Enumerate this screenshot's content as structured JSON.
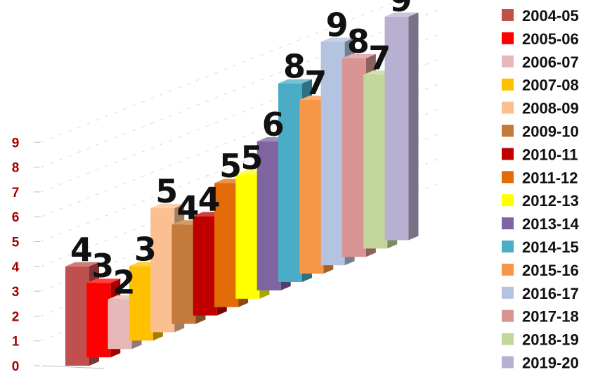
{
  "chart_data": {
    "type": "bar",
    "style": "3d-column",
    "categories": [
      "2004-05",
      "2005-06",
      "2006-07",
      "2007-08",
      "2008-09",
      "2009-10",
      "2010-11",
      "2011-12",
      "2012-13",
      "2013-14",
      "2014-15",
      "2015-16",
      "2016-17",
      "2017-18",
      "2018-19",
      "2019-20"
    ],
    "values": [
      4,
      3,
      2,
      3,
      5,
      4,
      4,
      5,
      5,
      6,
      8,
      7,
      9,
      8,
      7,
      9
    ],
    "data_labels": [
      "4",
      "3",
      "2",
      "3",
      "5",
      "4",
      "4",
      "5",
      "5",
      "6",
      "8",
      "7",
      "9",
      "8",
      "7",
      "9"
    ],
    "colors": [
      "#c0504d",
      "#ff0000",
      "#e6b9b8",
      "#ffc000",
      "#fac090",
      "#c47a3a",
      "#c00000",
      "#e36c09",
      "#ffff00",
      "#8064a2",
      "#4bacc6",
      "#f79646",
      "#b3c3e0",
      "#d99594",
      "#c3d69b",
      "#b8b0d0"
    ],
    "title": "",
    "xlabel": "",
    "ylabel": "",
    "yticks": [
      "0",
      "1",
      "2",
      "3",
      "4",
      "5",
      "6",
      "7",
      "8",
      "9"
    ],
    "ylim": [
      0,
      9
    ],
    "grid": true,
    "legend": "right"
  }
}
